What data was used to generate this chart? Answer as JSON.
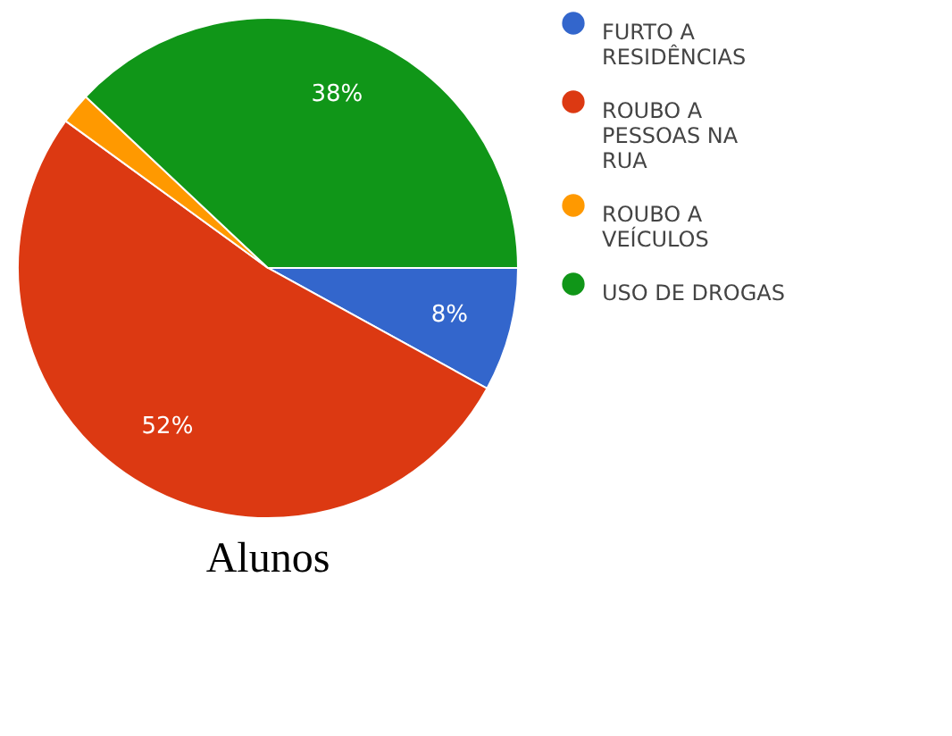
{
  "chart_data": {
    "type": "pie",
    "title": "Alunos",
    "categories": [
      "FURTO A RESIDÊNCIAS",
      "ROUBO A PESSOAS NA RUA",
      "ROUBO A VEÍCULOS",
      "USO DE DROGAS"
    ],
    "values": [
      8,
      52,
      2,
      38
    ],
    "colors": [
      "#3366cc",
      "#dc3912",
      "#ff9900",
      "#109618"
    ],
    "value_labels": [
      "8%",
      "52%",
      null,
      "38%"
    ],
    "legend": "top right"
  }
}
